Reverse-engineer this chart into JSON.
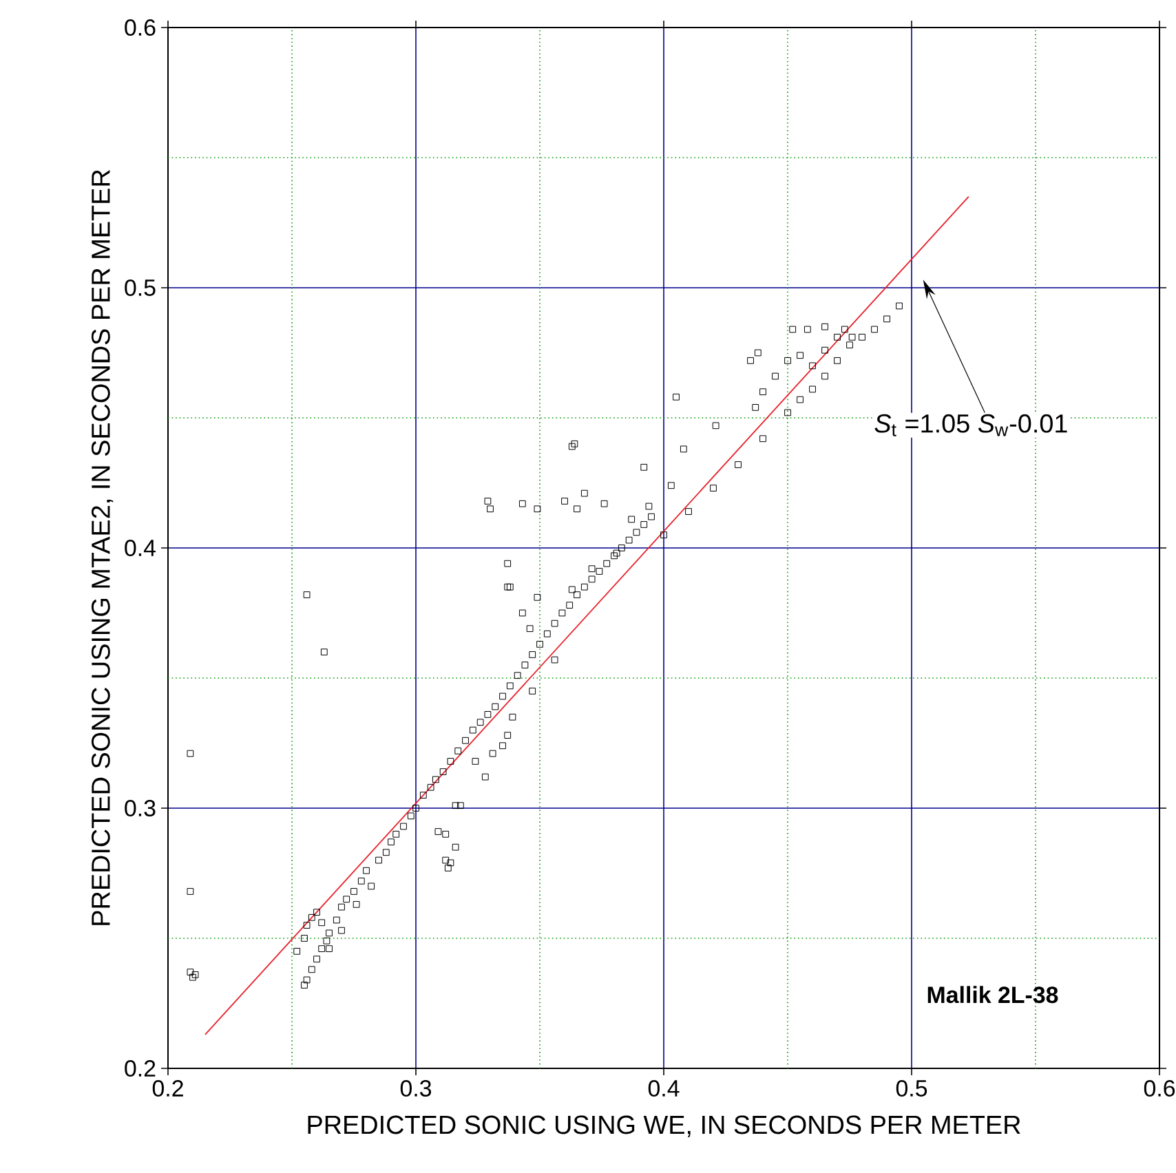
{
  "chart_data": {
    "type": "scatter",
    "xlabel": "PREDICTED SONIC USING WE, IN SECONDS PER METER",
    "ylabel": "PREDICTED SONIC USING MTAE2, IN SECONDS PER METER",
    "xlim": [
      0.2,
      0.6
    ],
    "ylim": [
      0.2,
      0.6
    ],
    "xticks": [
      0.2,
      {
        "value": 0.25,
        "label": null
      },
      0.3,
      {
        "value": 0.35,
        "label": null
      },
      0.4,
      {
        "value": 0.45,
        "label": null
      },
      0.5,
      {
        "value": 0.55,
        "label": null
      },
      0.6
    ],
    "yticks": [
      0.2,
      {
        "value": 0.25,
        "label": null
      },
      0.3,
      {
        "value": 0.35,
        "label": null
      },
      0.4,
      {
        "value": 0.45,
        "label": null
      },
      0.5,
      {
        "value": 0.55,
        "label": null
      },
      0.6
    ],
    "grid": true,
    "series": [
      {
        "marker": "square",
        "color": "#000000",
        "x": [
          0.209,
          0.209,
          0.209,
          0.21,
          0.211,
          0.256,
          0.263,
          0.252,
          0.255,
          0.256,
          0.258,
          0.26,
          0.262,
          0.264,
          0.255,
          0.256,
          0.258,
          0.26,
          0.262,
          0.265,
          0.268,
          0.27,
          0.272,
          0.275,
          0.278,
          0.28,
          0.276,
          0.282,
          0.285,
          0.288,
          0.29,
          0.292,
          0.295,
          0.298,
          0.3,
          0.303,
          0.306,
          0.308,
          0.311,
          0.314,
          0.317,
          0.32,
          0.323,
          0.326,
          0.329,
          0.332,
          0.335,
          0.338,
          0.341,
          0.344,
          0.347,
          0.35,
          0.353,
          0.356,
          0.359,
          0.362,
          0.365,
          0.368,
          0.371,
          0.374,
          0.377,
          0.38,
          0.383,
          0.386,
          0.389,
          0.392,
          0.395,
          0.4,
          0.41,
          0.42,
          0.43,
          0.44,
          0.45,
          0.455,
          0.46,
          0.465,
          0.47,
          0.475,
          0.48,
          0.485,
          0.49,
          0.495,
          0.46,
          0.465,
          0.47,
          0.45,
          0.455,
          0.452,
          0.458,
          0.465,
          0.473,
          0.476,
          0.445,
          0.44,
          0.437,
          0.438,
          0.435,
          0.405,
          0.421,
          0.364,
          0.392,
          0.408,
          0.329,
          0.33,
          0.343,
          0.349,
          0.36,
          0.368,
          0.365,
          0.376,
          0.394,
          0.403,
          0.337,
          0.337,
          0.387,
          0.309,
          0.312,
          0.316,
          0.312,
          0.314,
          0.313,
          0.316,
          0.318,
          0.328,
          0.331,
          0.324,
          0.335,
          0.337,
          0.339,
          0.347,
          0.338,
          0.343,
          0.346,
          0.349,
          0.356,
          0.363,
          0.381,
          0.371,
          0.363,
          0.265,
          0.27
        ],
        "values": [
          0.321,
          0.268,
          0.237,
          0.235,
          0.236,
          0.382,
          0.36,
          0.245,
          0.232,
          0.234,
          0.238,
          0.242,
          0.246,
          0.249,
          0.25,
          0.255,
          0.258,
          0.26,
          0.256,
          0.252,
          0.257,
          0.262,
          0.265,
          0.268,
          0.272,
          0.276,
          0.263,
          0.27,
          0.28,
          0.283,
          0.287,
          0.29,
          0.293,
          0.297,
          0.3,
          0.305,
          0.308,
          0.311,
          0.314,
          0.318,
          0.322,
          0.326,
          0.33,
          0.333,
          0.336,
          0.339,
          0.343,
          0.347,
          0.351,
          0.355,
          0.359,
          0.363,
          0.367,
          0.371,
          0.375,
          0.378,
          0.382,
          0.385,
          0.388,
          0.391,
          0.394,
          0.397,
          0.4,
          0.403,
          0.406,
          0.409,
          0.412,
          0.405,
          0.414,
          0.423,
          0.432,
          0.442,
          0.452,
          0.457,
          0.461,
          0.466,
          0.472,
          0.478,
          0.481,
          0.484,
          0.488,
          0.493,
          0.47,
          0.476,
          0.481,
          0.472,
          0.474,
          0.484,
          0.484,
          0.485,
          0.484,
          0.481,
          0.466,
          0.46,
          0.454,
          0.475,
          0.472,
          0.458,
          0.447,
          0.44,
          0.431,
          0.438,
          0.418,
          0.415,
          0.417,
          0.415,
          0.418,
          0.421,
          0.415,
          0.417,
          0.416,
          0.424,
          0.394,
          0.385,
          0.411,
          0.291,
          0.29,
          0.285,
          0.28,
          0.279,
          0.277,
          0.301,
          0.301,
          0.312,
          0.321,
          0.318,
          0.324,
          0.328,
          0.335,
          0.345,
          0.385,
          0.375,
          0.369,
          0.381,
          0.357,
          0.439,
          0.398,
          0.392,
          0.384,
          0.246,
          0.253
        ]
      },
      {
        "type": "line",
        "marker": "none",
        "color": "#e8202a",
        "x": [
          0.215,
          0.523
        ],
        "values": [
          0.213,
          0.535
        ]
      }
    ],
    "annotations": [
      "*S*$_{t}$ =1.05 *S*$_{w}$-0.01",
      "Mallik 2L-38"
    ]
  }
}
